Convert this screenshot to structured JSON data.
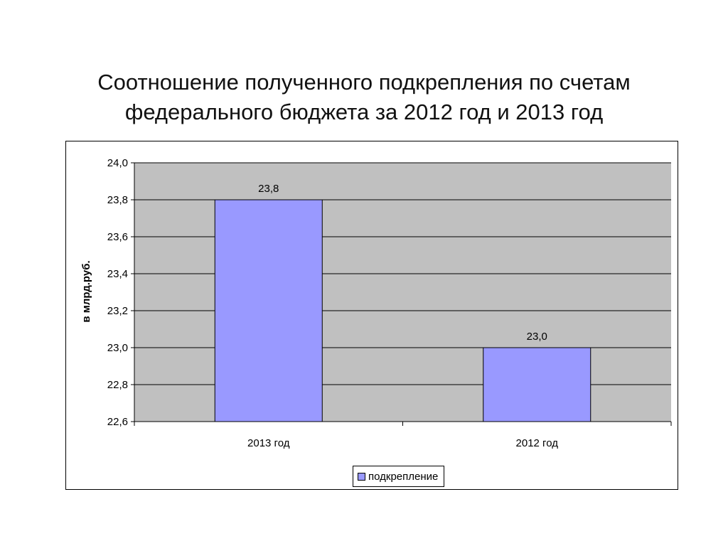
{
  "slide": {
    "title_line1": "Соотношение полученного подкрепления по счетам",
    "title_line2": "федерального бюджета за 2012 год и 2013 год"
  },
  "chart_data": {
    "type": "bar",
    "categories": [
      "2013 год",
      "2012 год"
    ],
    "series": [
      {
        "name": "подкрепление",
        "values": [
          23.8,
          23.0
        ],
        "color": "#9999ff"
      }
    ],
    "data_labels": [
      "23,8",
      "23,0"
    ],
    "title": "",
    "xlabel": "",
    "ylabel": "в млрд.руб.",
    "ylim": [
      22.6,
      24.0
    ],
    "yticks": [
      22.6,
      22.8,
      23.0,
      23.2,
      23.4,
      23.6,
      23.8,
      24.0
    ],
    "ytick_labels": [
      "22,6",
      "22,8",
      "23,0",
      "23,2",
      "23,4",
      "23,6",
      "23,8",
      "24,0"
    ],
    "grid": true,
    "legend_position": "bottom",
    "plot_background": "#c0c0c0"
  }
}
